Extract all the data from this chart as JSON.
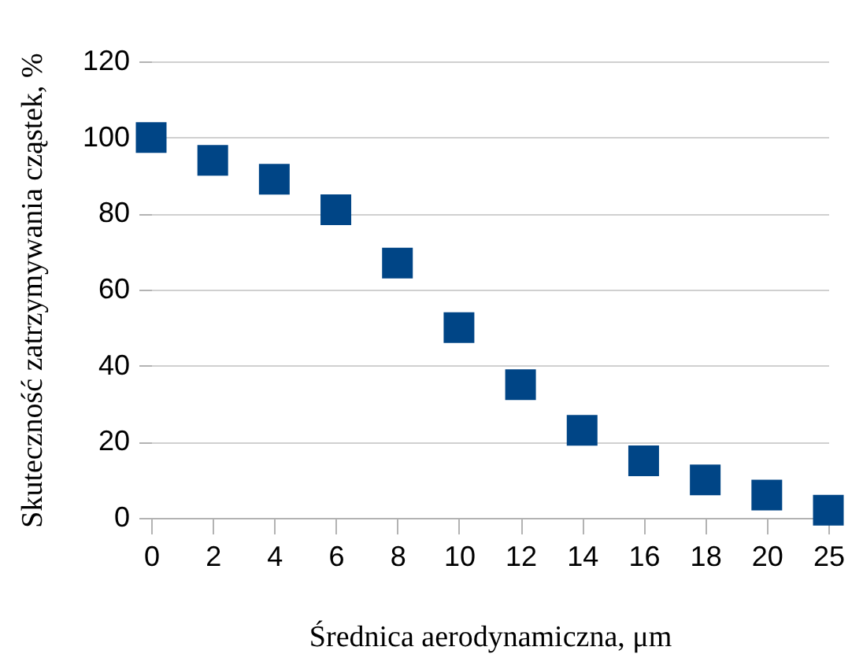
{
  "chart_data": {
    "type": "scatter",
    "xlabel": "Średnica aerodynamiczna, μm",
    "ylabel": "Skuteczność zatrzymywania cząstek, %",
    "categories": [
      "0",
      "2",
      "4",
      "6",
      "8",
      "10",
      "12",
      "14",
      "16",
      "18",
      "20",
      "25"
    ],
    "series": [
      {
        "color": "#004586",
        "values": [
          100,
          94,
          89,
          81,
          67,
          50,
          35,
          23,
          15,
          10,
          6,
          2
        ]
      }
    ],
    "ylim": [
      0,
      120
    ],
    "yticks": [
      0,
      20,
      40,
      60,
      80,
      100,
      120
    ],
    "grid": "y",
    "marker": "square",
    "legend": false
  }
}
